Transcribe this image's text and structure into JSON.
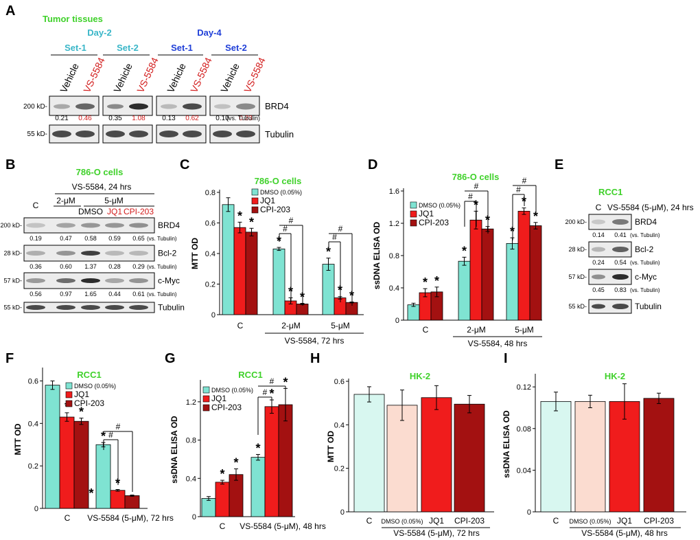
{
  "colors": {
    "aqua": "#7fe3d2",
    "red": "#f01c1c",
    "darkred": "#a31111",
    "green": "#3fd12a",
    "teal_text": "#39b6c8",
    "blue_text": "#1f3fd8",
    "red_text": "#d21a1a",
    "pale_aqua": "#d8f7f0",
    "pale_pink": "#fbdcd0"
  },
  "panel_a": {
    "letter": "A",
    "title": "Tumor tissues",
    "day2": "Day-2",
    "day4": "Day-4",
    "sets": [
      "Set-1",
      "Set-2",
      "Set-1",
      "Set-2"
    ],
    "lanes": [
      "Vehicle",
      "VS-5584"
    ],
    "bands": [
      "BRD4",
      "Tubulin"
    ],
    "mw": [
      "200 kD-",
      "55 kD-"
    ],
    "quant": [
      [
        "0.21",
        "0.46"
      ],
      [
        "0.35",
        "1.08"
      ],
      [
        "0.13",
        "0.62"
      ],
      [
        "0.10",
        "0.23"
      ]
    ],
    "quant_note": "(vs. Tubulin)"
  },
  "panel_b": {
    "letter": "B",
    "title": "786-O cells",
    "treatment": "VS-5584, 24 hrs",
    "dose_labels": [
      "2-μM",
      "5-μM"
    ],
    "lanes": [
      "C",
      "DMSO",
      "JQ1",
      "CPI-203"
    ],
    "bands": [
      "BRD4",
      "Bcl-2",
      "c-Myc",
      "Tubulin"
    ],
    "mw": [
      "200 kD-",
      "28 kD-",
      "57 kD-",
      "55 kD-"
    ],
    "quant": [
      [
        "0.19",
        "0.47",
        "0.58",
        "0.59",
        "0.65"
      ],
      [
        "0.36",
        "0.60",
        "1.37",
        "0.28",
        "0.29"
      ],
      [
        "0.56",
        "0.97",
        "1.65",
        "0.44",
        "0.61"
      ]
    ],
    "quant_note": "(vs. Tubulin)"
  },
  "panel_e": {
    "letter": "E",
    "title": "RCC1",
    "lanes": [
      "C",
      "VS-5584 (5-μM), 24 hrs"
    ],
    "bands": [
      "BRD4",
      "Bcl-2",
      "c-Myc",
      "Tubulin"
    ],
    "mw": [
      "200 kD-",
      "28 kD-",
      "57 kD-",
      "55 kD-"
    ],
    "quant": [
      [
        "0.14",
        "0.41"
      ],
      [
        "0.24",
        "0.54"
      ],
      [
        "0.45",
        "0.83"
      ]
    ],
    "quant_note": "(vs. Tubulin)"
  },
  "chart_data": [
    {
      "panel": "C",
      "type": "bar",
      "title": "786-O cells",
      "ylabel": "MTT OD",
      "ylim": [
        0,
        0.8
      ],
      "yticks": [
        "0",
        "0.2",
        "0.4",
        "0.6",
        "0.8"
      ],
      "groups": [
        "C",
        "2-μM",
        "5-μM"
      ],
      "group_caption": "VS-5584, 72 hrs",
      "series": [
        {
          "name": "DMSO (0.05%)",
          "values": [
            0.72,
            0.43,
            0.33
          ],
          "errors": [
            0.045,
            0.01,
            0.04
          ]
        },
        {
          "name": "JQ1",
          "values": [
            0.57,
            0.09,
            0.11
          ],
          "errors": [
            0.035,
            0.02,
            0.008
          ]
        },
        {
          "name": "CPI-203",
          "values": [
            0.54,
            0.07,
            0.08
          ],
          "errors": [
            0.025,
            0.004,
            0.003
          ]
        }
      ],
      "stars": [
        [
          false,
          true,
          true
        ],
        [
          true,
          true,
          true
        ],
        [
          true,
          true,
          true
        ]
      ],
      "hash_label": "#",
      "star_label": "*"
    },
    {
      "panel": "D",
      "type": "bar",
      "title": "786-O cells",
      "ylabel": "ssDNA ELISA OD",
      "ylim": [
        0,
        1.6
      ],
      "yticks": [
        "0",
        "0.4",
        "0.8",
        "1.2",
        "1.6"
      ],
      "groups": [
        "C",
        "2-μM",
        "5-μM"
      ],
      "group_caption": "VS-5584, 48 hrs",
      "series": [
        {
          "name": "DMSO (0.05%)",
          "values": [
            0.19,
            0.73,
            0.95
          ],
          "errors": [
            0.02,
            0.05,
            0.07
          ]
        },
        {
          "name": "JQ1",
          "values": [
            0.34,
            1.24,
            1.35
          ],
          "errors": [
            0.05,
            0.11,
            0.04
          ]
        },
        {
          "name": "CPI-203",
          "values": [
            0.35,
            1.13,
            1.17
          ],
          "errors": [
            0.06,
            0.03,
            0.04
          ]
        }
      ],
      "stars": [
        [
          false,
          true,
          true
        ],
        [
          true,
          true,
          true
        ],
        [
          true,
          true,
          true
        ]
      ],
      "hash_label": "#",
      "star_label": "*"
    },
    {
      "panel": "F",
      "type": "bar",
      "title": "RCC1",
      "ylabel": "MTT OD",
      "ylim": [
        0,
        0.65
      ],
      "yticks": [
        "0",
        "0.2",
        "0.4",
        "0.6"
      ],
      "groups": [
        "C",
        "VS-5584 (5-μM), 72 hrs"
      ],
      "series": [
        {
          "name": "DMSO (0.05%)",
          "values": [
            0.58,
            0.3
          ],
          "errors": [
            0.02,
            0.01
          ]
        },
        {
          "name": "JQ1",
          "values": [
            0.43,
            0.085
          ],
          "errors": [
            0.02,
            0.004
          ]
        },
        {
          "name": "CPI-203",
          "values": [
            0.41,
            0.06
          ],
          "errors": [
            0.015,
            0.003
          ]
        }
      ],
      "stars": [
        [
          false,
          true,
          true
        ],
        [
          true,
          true,
          false
        ]
      ],
      "extra_star": "*",
      "hash_label": "#",
      "star_label": "*"
    },
    {
      "panel": "G",
      "type": "bar",
      "title": "RCC1",
      "ylabel": "ssDNA ELISA OD",
      "ylim": [
        0,
        1.4
      ],
      "yticks": [
        "0",
        "0.4",
        "0.8",
        "1.2"
      ],
      "groups": [
        "C",
        "VS-5584 (5-μM), 48 hrs"
      ],
      "series": [
        {
          "name": "DMSO (0.05%)",
          "values": [
            0.19,
            0.62
          ],
          "errors": [
            0.02,
            0.03
          ]
        },
        {
          "name": "JQ1",
          "values": [
            0.36,
            1.15
          ],
          "errors": [
            0.02,
            0.07
          ]
        },
        {
          "name": "CPI-203",
          "values": [
            0.44,
            1.17
          ],
          "errors": [
            0.06,
            0.17
          ]
        }
      ],
      "stars": [
        [
          false,
          true,
          true
        ],
        [
          true,
          true,
          true
        ]
      ],
      "hash_label": "#",
      "star_label": "*"
    },
    {
      "panel": "H",
      "type": "bar",
      "title": "HK-2",
      "ylabel": "MTT OD",
      "ylim": [
        0,
        0.6
      ],
      "yticks": [
        "0",
        "0.2",
        "0.4",
        "0.6"
      ],
      "categories": [
        "C",
        "DMSO (0.05%)",
        "JQ1",
        "CPI-203"
      ],
      "group_caption": "VS-5584 (5-μM), 72 hrs",
      "values": [
        0.54,
        0.49,
        0.525,
        0.495
      ],
      "errors": [
        0.035,
        0.07,
        0.055,
        0.04
      ]
    },
    {
      "panel": "I",
      "type": "bar",
      "title": "HK-2",
      "ylabel": "ssDNA ELISA OD",
      "ylim": [
        0,
        0.13
      ],
      "yticks": [
        "0",
        "0.04",
        "0.08",
        "0.12"
      ],
      "categories": [
        "C",
        "DMSO (0.05%)",
        "JQ1",
        "CPI-203"
      ],
      "group_caption": "VS-5584 (5-μM), 48 hrs",
      "values": [
        0.106,
        0.106,
        0.106,
        0.109
      ],
      "errors": [
        0.009,
        0.006,
        0.017,
        0.005
      ]
    }
  ]
}
